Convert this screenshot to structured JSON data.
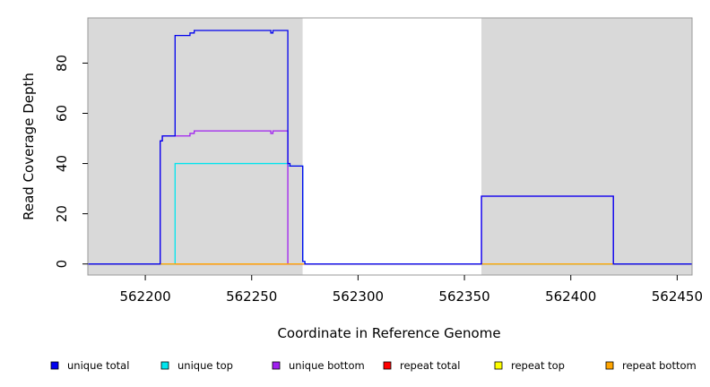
{
  "chart_data": {
    "type": "line",
    "title": "",
    "xlabel": "Coordinate in Reference Genome",
    "ylabel": "Read Coverage Depth",
    "xlim": [
      562173,
      562457
    ],
    "ylim": [
      -4.4,
      98
    ],
    "x_ticks": [
      562200,
      562250,
      562300,
      562350,
      562400,
      562450
    ],
    "y_ticks": [
      0,
      20,
      40,
      60,
      80
    ],
    "grid": false,
    "legend_position": "bottom",
    "background_regions": [
      {
        "x": [
          562173,
          562274
        ],
        "color": "#d9d9d9"
      },
      {
        "x": [
          562274,
          562358
        ],
        "color": "#ffffff"
      },
      {
        "x": [
          562358,
          562457
        ],
        "color": "#d9d9d9"
      }
    ],
    "series": [
      {
        "name": "repeat top",
        "color": "#ffff00",
        "points": [
          [
            562173,
            0
          ],
          [
            562457,
            0
          ]
        ]
      },
      {
        "name": "repeat total",
        "color": "#ff0000",
        "points": [
          [
            562173,
            0
          ],
          [
            562457,
            0
          ]
        ]
      },
      {
        "name": "unique top",
        "color": "#00e5ee",
        "points": [
          [
            562173,
            0
          ],
          [
            562214,
            0
          ],
          [
            562214,
            40
          ],
          [
            562267,
            40
          ],
          [
            562267,
            39
          ],
          [
            562274,
            39
          ],
          [
            562274,
            1
          ],
          [
            562275,
            1
          ],
          [
            562275,
            0
          ],
          [
            562457,
            0
          ]
        ]
      },
      {
        "name": "unique bottom",
        "color": "#a020f0",
        "points": [
          [
            562173,
            0
          ],
          [
            562207,
            0
          ],
          [
            562207,
            49
          ],
          [
            562208,
            49
          ],
          [
            562208,
            51
          ],
          [
            562214,
            51
          ],
          [
            562214,
            51
          ],
          [
            562221,
            51
          ],
          [
            562221,
            52
          ],
          [
            562223,
            52
          ],
          [
            562223,
            53
          ],
          [
            562259,
            53
          ],
          [
            562259,
            52
          ],
          [
            562260,
            52
          ],
          [
            562260,
            53
          ],
          [
            562267,
            53
          ],
          [
            562267,
            0
          ],
          [
            562358,
            0
          ],
          [
            562358,
            27
          ],
          [
            562420,
            27
          ],
          [
            562420,
            0
          ],
          [
            562457,
            0
          ]
        ]
      },
      {
        "name": "repeat bottom",
        "color": "#ffa500",
        "points": [
          [
            562173,
            0
          ],
          [
            562457,
            0
          ]
        ]
      },
      {
        "name": "unique total",
        "color": "#0000ee",
        "points": [
          [
            562173,
            0
          ],
          [
            562207,
            0
          ],
          [
            562207,
            49
          ],
          [
            562208,
            49
          ],
          [
            562208,
            51
          ],
          [
            562214,
            51
          ],
          [
            562214,
            91
          ],
          [
            562221,
            91
          ],
          [
            562221,
            92
          ],
          [
            562223,
            92
          ],
          [
            562223,
            93
          ],
          [
            562259,
            93
          ],
          [
            562259,
            92
          ],
          [
            562260,
            92
          ],
          [
            562260,
            93
          ],
          [
            562267,
            93
          ],
          [
            562267,
            40
          ],
          [
            562268,
            40
          ],
          [
            562268,
            39
          ],
          [
            562274,
            39
          ],
          [
            562274,
            1
          ],
          [
            562275,
            1
          ],
          [
            562275,
            0
          ],
          [
            562358,
            0
          ],
          [
            562358,
            27
          ],
          [
            562420,
            27
          ],
          [
            562420,
            0
          ],
          [
            562457,
            0
          ]
        ]
      }
    ],
    "legend": [
      {
        "label": "unique total",
        "color": "#0000ee"
      },
      {
        "label": "unique top",
        "color": "#00e5ee"
      },
      {
        "label": "unique bottom",
        "color": "#a020f0"
      },
      {
        "label": "repeat total",
        "color": "#ff0000"
      },
      {
        "label": "repeat top",
        "color": "#ffff00"
      },
      {
        "label": "repeat bottom",
        "color": "#ffa500"
      }
    ]
  }
}
